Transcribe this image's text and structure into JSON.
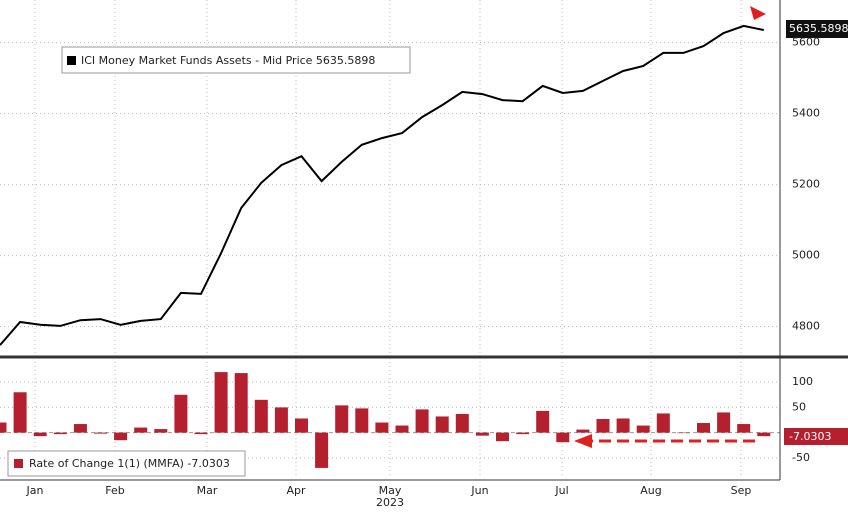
{
  "chart_data": [
    {
      "type": "line",
      "legend": "ICI Money Market Funds Assets - Mid Price 5635.5898",
      "last_label": "5635.5898",
      "color": "#000000",
      "values": [
        4748,
        4813,
        4805,
        4802,
        4818,
        4821,
        4805,
        4816,
        4821,
        4895,
        4892,
        5007,
        5134,
        5205,
        5255,
        5280,
        5210,
        5264,
        5312,
        5331,
        5345,
        5390,
        5424,
        5461,
        5455,
        5438,
        5435,
        5478,
        5458,
        5464,
        5492,
        5520,
        5534,
        5571,
        5571,
        5590,
        5627,
        5647,
        5635.5898
      ],
      "ylim": [
        4720,
        5720
      ],
      "yticks": [
        4800,
        5000,
        5200,
        5400,
        5600
      ],
      "grid": true
    },
    {
      "type": "bar",
      "legend": "Rate of Change 1(1) (MMFA) -7.0303",
      "last_label": "-7.0303",
      "color": "#b5202e",
      "values": [
        20,
        80,
        -7,
        -3,
        17,
        -2,
        -15,
        10,
        7,
        75,
        -3,
        120,
        118,
        65,
        50,
        28,
        -70,
        54,
        48,
        20,
        14,
        46,
        32,
        37,
        -6,
        -17,
        -3,
        43,
        -19,
        6,
        27,
        28,
        14,
        38,
        0,
        19,
        40,
        17,
        -7.0303
      ],
      "ylim": [
        -90,
        140
      ],
      "yticks": [
        -50,
        50,
        100
      ],
      "grid": true,
      "xtick_labels": [
        "Jan",
        "Feb",
        "Mar",
        "Apr",
        "May",
        "Jun",
        "Jul",
        "Aug",
        "Sep"
      ],
      "year_label": "2023"
    }
  ]
}
